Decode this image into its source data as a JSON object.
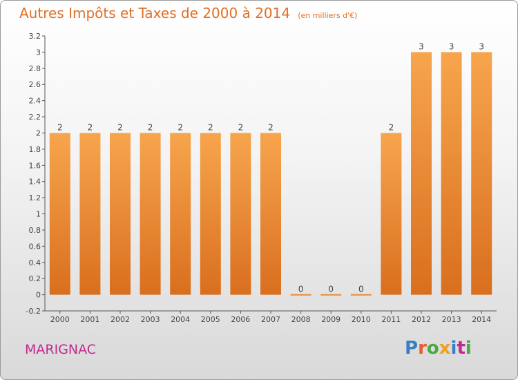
{
  "header": {
    "title": "Autres Impôts et Taxes de 2000 à 2014",
    "subtitle": "(en milliers d'€)"
  },
  "footer": {
    "commune": "MARIGNAC",
    "logo_text": "Proxiti"
  },
  "colors": {
    "bar_top": "#f7a54d",
    "bar_bottom": "#d96f1e",
    "title": "#e06f24",
    "commune": "#c42a8e",
    "logo": [
      "#3a7fc4",
      "#e85e2c",
      "#4aa845",
      "#f0a020",
      "#3a7fc4",
      "#c42a8e",
      "#4aa845"
    ]
  },
  "chart_data": {
    "type": "bar",
    "categories": [
      "2000",
      "2001",
      "2002",
      "2003",
      "2004",
      "2005",
      "2006",
      "2007",
      "2008",
      "2009",
      "2010",
      "2011",
      "2012",
      "2013",
      "2014"
    ],
    "values": [
      2,
      2,
      2,
      2,
      2,
      2,
      2,
      2,
      0,
      0,
      0,
      2,
      3,
      3,
      3
    ],
    "data_labels": [
      "2",
      "2",
      "2",
      "2",
      "2",
      "2",
      "2",
      "2",
      "0",
      "0",
      "0",
      "2",
      "3",
      "3",
      "3"
    ],
    "y_ticks": [
      "3.2",
      "3",
      "2.8",
      "2.6",
      "2.4",
      "2.2",
      "2",
      "1.8",
      "1.6",
      "1.4",
      "1.2",
      "1",
      "0.8",
      "0.6",
      "0.4",
      "0.2",
      "0",
      "-0.2"
    ],
    "ylim": [
      -0.2,
      3.2
    ],
    "grid": false,
    "title": "Autres Impôts et Taxes de 2000 à 2014",
    "xlabel": "",
    "ylabel": ""
  }
}
